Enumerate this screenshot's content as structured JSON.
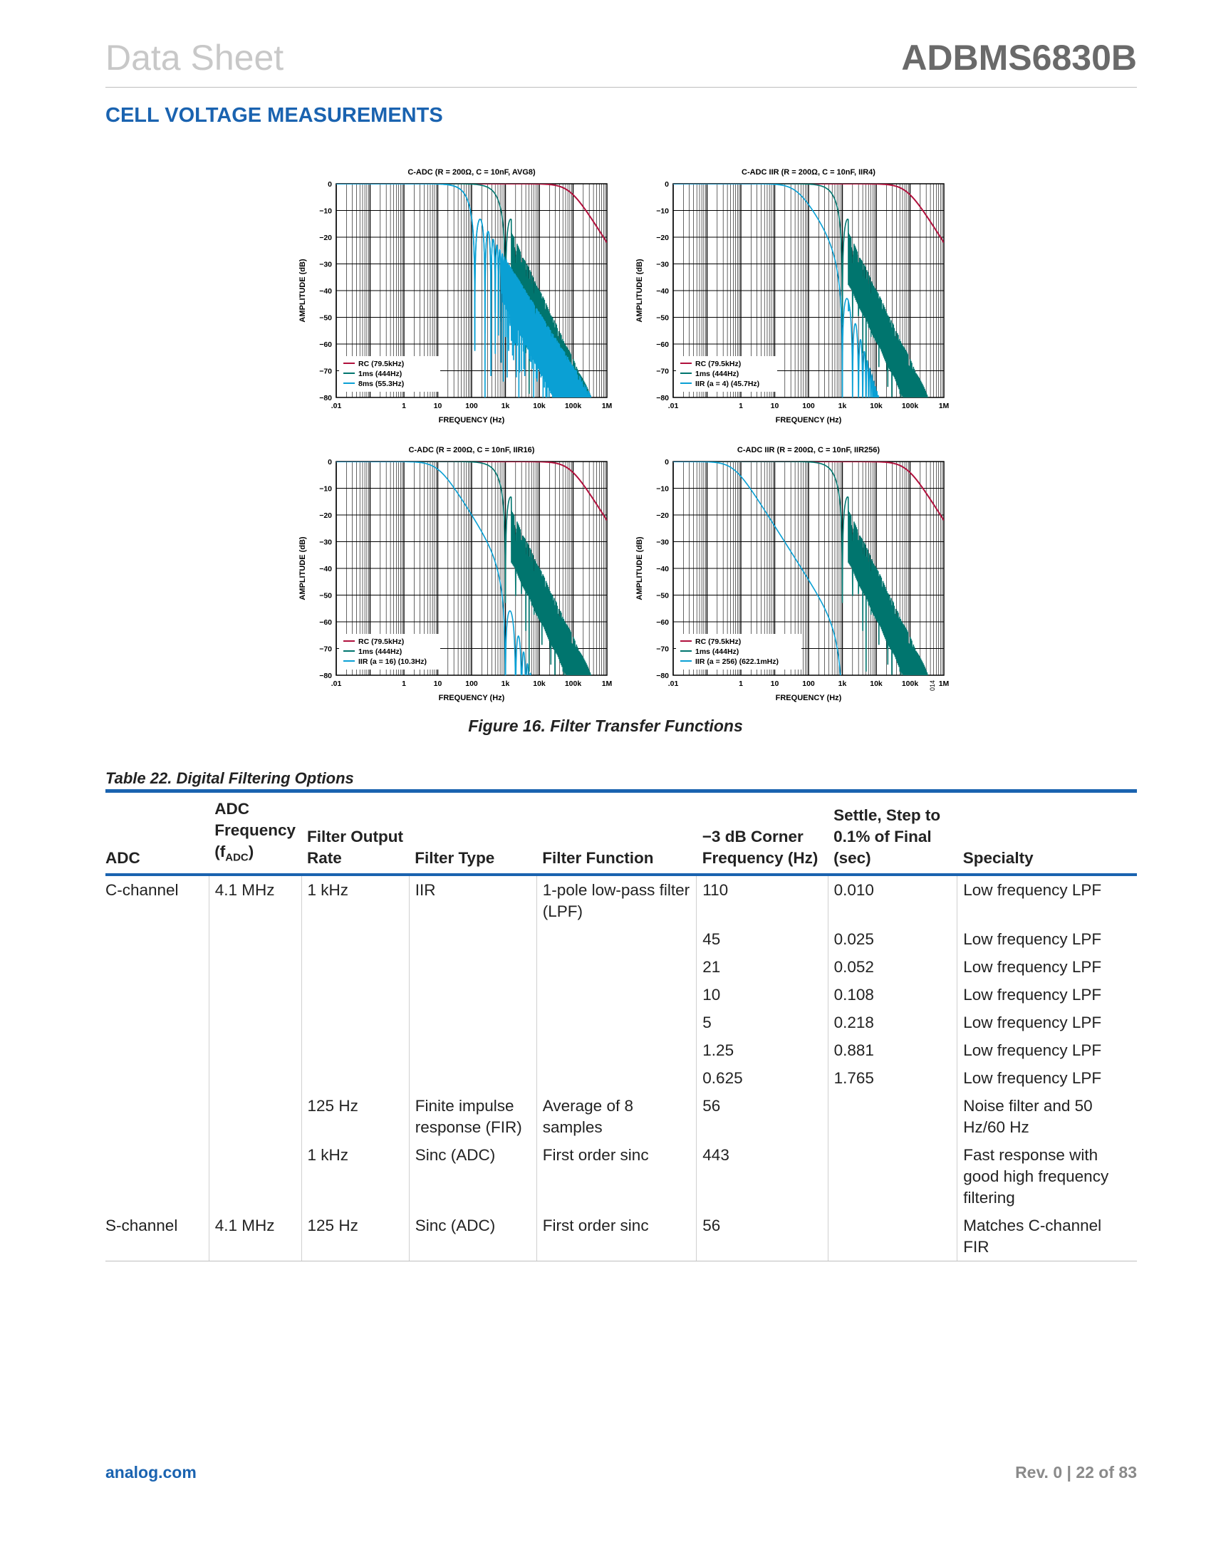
{
  "header": {
    "left": "Data Sheet",
    "right": "ADBMS6830B"
  },
  "section_title": "CELL VOLTAGE MEASUREMENTS",
  "figure_caption": "Figure 16. Filter Transfer Functions",
  "figure_id": "014",
  "colors": {
    "rc": "#b0103c",
    "ms1": "#00756e",
    "filter": "#0aa0d4",
    "accent": "#1a63b0"
  },
  "chart_data": [
    {
      "type": "line",
      "title": "C-ADC (R = 200Ω, C = 10nF, AVG8)",
      "xlabel": "FREQUENCY (Hz)",
      "ylabel": "AMPLITUDE (dB)",
      "xscale": "log",
      "xlim": [
        0.01,
        1000000
      ],
      "ylim": [
        -80,
        0
      ],
      "xticks": [
        ".01",
        "1",
        "10",
        "100",
        "1k",
        "10k",
        "100k",
        "1M"
      ],
      "yticks": [
        "0",
        "−10",
        "−20",
        "−30",
        "−40",
        "−50",
        "−60",
        "−70",
        "−80"
      ],
      "grid": true,
      "legend_position": "bottom-left",
      "series": [
        {
          "name": "RC (79.5kHz)",
          "corner_hz": 79500,
          "style": "rc"
        },
        {
          "name": "1ms (444Hz)",
          "corner_hz": 444,
          "style": "sinc"
        },
        {
          "name": "8ms (55.3Hz)",
          "corner_hz": 55.3,
          "style": "sinc"
        }
      ]
    },
    {
      "type": "line",
      "title": "C-ADC IIR (R = 200Ω, C = 10nF, IIR4)",
      "xlabel": "FREQUENCY (Hz)",
      "ylabel": "AMPLITUDE (dB)",
      "xscale": "log",
      "xlim": [
        0.01,
        1000000
      ],
      "ylim": [
        -80,
        0
      ],
      "xticks": [
        ".01",
        "1",
        "10",
        "100",
        "1k",
        "10k",
        "100k",
        "1M"
      ],
      "yticks": [
        "0",
        "−10",
        "−20",
        "−30",
        "−40",
        "−50",
        "−60",
        "−70",
        "−80"
      ],
      "grid": true,
      "legend_position": "bottom-left",
      "series": [
        {
          "name": "RC (79.5kHz)",
          "corner_hz": 79500,
          "style": "rc"
        },
        {
          "name": "1ms (444Hz)",
          "corner_hz": 444,
          "style": "sinc"
        },
        {
          "name": "IIR (a = 4) (45.7Hz)",
          "corner_hz": 45.7,
          "style": "iir"
        }
      ]
    },
    {
      "type": "line",
      "title": "C-ADC (R = 200Ω, C = 10nF, IIR16)",
      "xlabel": "FREQUENCY (Hz)",
      "ylabel": "AMPLITUDE (dB)",
      "xscale": "log",
      "xlim": [
        0.01,
        1000000
      ],
      "ylim": [
        -80,
        0
      ],
      "xticks": [
        ".01",
        "1",
        "10",
        "100",
        "1k",
        "10k",
        "100k",
        "1M"
      ],
      "yticks": [
        "0",
        "−10",
        "−20",
        "−30",
        "−40",
        "−50",
        "−60",
        "−70",
        "−80"
      ],
      "grid": true,
      "legend_position": "bottom-left",
      "series": [
        {
          "name": "RC (79.5kHz)",
          "corner_hz": 79500,
          "style": "rc"
        },
        {
          "name": "1ms (444Hz)",
          "corner_hz": 444,
          "style": "sinc"
        },
        {
          "name": "IIR (a = 16) (10.3Hz)",
          "corner_hz": 10.3,
          "style": "iir"
        }
      ]
    },
    {
      "type": "line",
      "title": "C-ADC IIR (R = 200Ω, C = 10nF, IIR256)",
      "xlabel": "FREQUENCY (Hz)",
      "ylabel": "AMPLITUDE (dB)",
      "xscale": "log",
      "xlim": [
        0.01,
        1000000
      ],
      "ylim": [
        -80,
        0
      ],
      "xticks": [
        ".01",
        "1",
        "10",
        "100",
        "1k",
        "10k",
        "100k",
        "1M"
      ],
      "yticks": [
        "0",
        "−10",
        "−20",
        "−30",
        "−40",
        "−50",
        "−60",
        "−70",
        "−80"
      ],
      "grid": true,
      "legend_position": "bottom-left",
      "series": [
        {
          "name": "RC (79.5kHz)",
          "corner_hz": 79500,
          "style": "rc"
        },
        {
          "name": "1ms (444Hz)",
          "corner_hz": 444,
          "style": "sinc"
        },
        {
          "name": "IIR (a = 256) (622.1mHz)",
          "corner_hz": 0.6221,
          "style": "iir"
        }
      ]
    }
  ],
  "table": {
    "caption": "Table 22. Digital Filtering Options",
    "headers": [
      "ADC",
      "ADC Frequency (f",
      "Filter Output Rate",
      "Filter Type",
      "Filter Function",
      "−3 dB Corner Frequency (Hz)",
      "Settle, Step to 0.1% of Final (sec)",
      "Specialty"
    ],
    "header_sub": "ADC",
    "header_close": ")",
    "rows": [
      [
        "C-channel",
        "4.1 MHz",
        "1 kHz",
        "IIR",
        "1-pole low-pass filter (LPF)",
        "110",
        "0.010",
        "Low frequency LPF"
      ],
      [
        "",
        "",
        "",
        "",
        "",
        "45",
        "0.025",
        "Low frequency LPF"
      ],
      [
        "",
        "",
        "",
        "",
        "",
        "21",
        "0.052",
        "Low frequency LPF"
      ],
      [
        "",
        "",
        "",
        "",
        "",
        "10",
        "0.108",
        "Low frequency LPF"
      ],
      [
        "",
        "",
        "",
        "",
        "",
        "5",
        "0.218",
        "Low frequency LPF"
      ],
      [
        "",
        "",
        "",
        "",
        "",
        "1.25",
        "0.881",
        "Low frequency LPF"
      ],
      [
        "",
        "",
        "",
        "",
        "",
        "0.625",
        "1.765",
        "Low frequency LPF"
      ],
      [
        "",
        "",
        "125 Hz",
        "Finite impulse response (FIR)",
        "Average of 8 samples",
        "56",
        "",
        "Noise filter and 50 Hz/60 Hz"
      ],
      [
        "",
        "",
        "1 kHz",
        "Sinc (ADC)",
        "First order sinc",
        "443",
        "",
        "Fast response with good high frequency filtering"
      ],
      [
        "S-channel",
        "4.1 MHz",
        "125 Hz",
        "Sinc (ADC)",
        "First order sinc",
        "56",
        "",
        "Matches C-channel FIR"
      ]
    ]
  },
  "footer": {
    "left": "analog.com",
    "right": "Rev. 0 | 22 of 83"
  }
}
